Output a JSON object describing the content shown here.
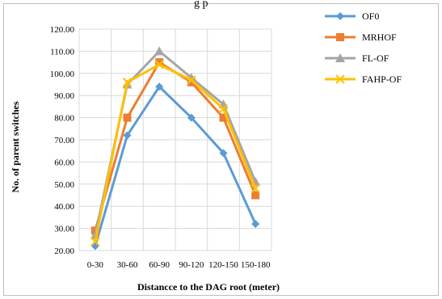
{
  "chart_data": {
    "type": "line",
    "title_fragment": "g p",
    "xlabel": "Distancce to the DAG root (meter)",
    "ylabel": "No. of parent switches",
    "categories": [
      "0-30",
      "30-60",
      "60-90",
      "90-120",
      "120-150",
      "150-180"
    ],
    "ylim": [
      20,
      120
    ],
    "yticks": [
      "20.00",
      "30.00",
      "40.00",
      "50.00",
      "60.00",
      "70.00",
      "80.00",
      "90.00",
      "100.00",
      "110.00",
      "120.00"
    ],
    "grid": true,
    "legend_position": "top-right",
    "series": [
      {
        "name": "OF0",
        "color": "#5b9bd5",
        "marker": "diamond",
        "values": [
          22,
          72,
          94,
          80,
          64,
          32
        ]
      },
      {
        "name": "MRHOF",
        "color": "#ed7d31",
        "marker": "square",
        "values": [
          29,
          80,
          105,
          96,
          80,
          45
        ]
      },
      {
        "name": "FL-OF",
        "color": "#a5a5a5",
        "marker": "triangle",
        "values": [
          27,
          95,
          110,
          98,
          86,
          51
        ]
      },
      {
        "name": "FAHP-OF",
        "color": "#ffc000",
        "marker": "x",
        "values": [
          24,
          96,
          104,
          97,
          84,
          48
        ]
      }
    ]
  }
}
